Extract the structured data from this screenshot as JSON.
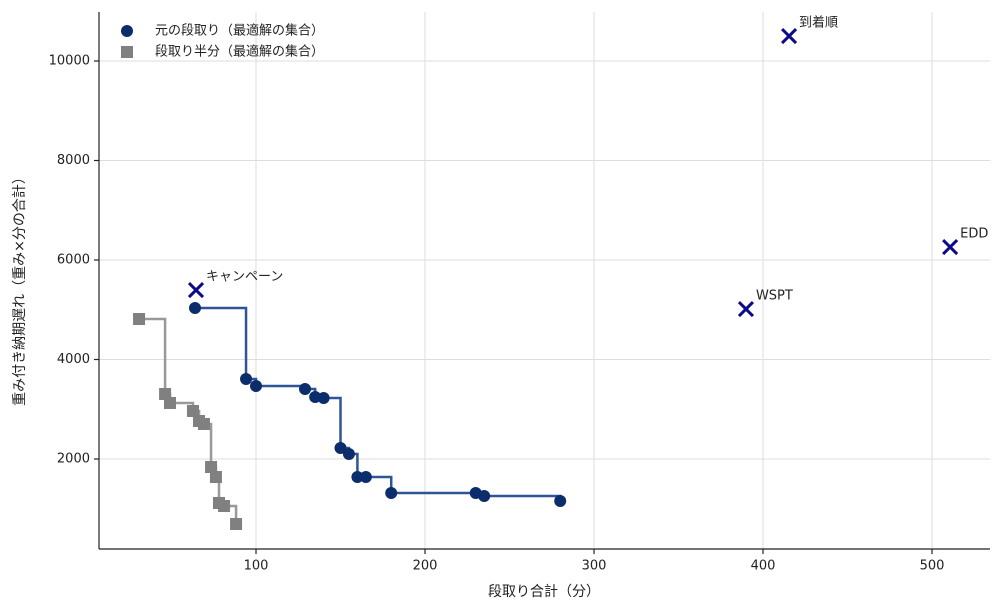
{
  "chart_data": {
    "type": "step-scatter",
    "xlabel": "段取り合計（分）",
    "ylabel": "重み付き納期遅れ（重み×分の合計）",
    "xlim": [
      7.1,
      534.3
    ],
    "ylim": [
      191,
      10985
    ],
    "xticks": [
      100,
      200,
      300,
      400,
      500
    ],
    "yticks": [
      2000,
      4000,
      6000,
      8000,
      10000
    ],
    "grid": true,
    "legend": "upper left",
    "step": "post",
    "series": [
      {
        "name": "元の段取り（最適解の集合）",
        "color": "#0b2d6b",
        "line_color": "#2e5596",
        "marker": "circle",
        "x": [
          63.9,
          94.1,
          100,
          129,
          135,
          140,
          150,
          155,
          160,
          165,
          180,
          230,
          235,
          280
        ],
        "values": [
          5035,
          3608,
          3467,
          3407,
          3246,
          3226,
          2221,
          2100,
          1638,
          1638,
          1317,
          1317,
          1256,
          1156
        ]
      },
      {
        "name": "段取り半分（最適解の集合）",
        "color": "#808080",
        "line_color": "#999999",
        "marker": "square",
        "x": [
          30.8,
          46.2,
          49.1,
          62.7,
          66.3,
          69.2,
          73.4,
          76.3,
          78.1,
          81.1,
          88.2
        ],
        "values": [
          4814,
          3307,
          3126,
          2965,
          2764,
          2704,
          1839,
          1638,
          1116,
          1055,
          693
        ]
      }
    ],
    "annotations": {
      "color": "#0a0a8a",
      "points": [
        {
          "label": "キャンペーン",
          "x": 64.5,
          "y": 5397
        },
        {
          "label": "WSPT",
          "x": 389.9,
          "y": 5015
        },
        {
          "label": "到着順",
          "x": 415.4,
          "y": 10502
        },
        {
          "label": "EDD",
          "x": 510.7,
          "y": 6261
        }
      ]
    }
  }
}
